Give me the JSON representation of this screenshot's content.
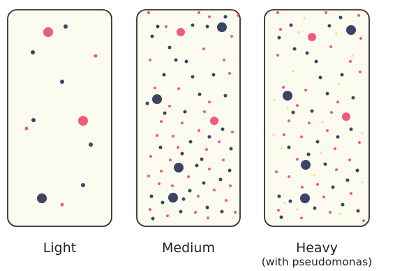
{
  "colors": {
    "background": "#ffffff",
    "panel_fill": "#fcfbf0",
    "panel_border": "#2e2e2e",
    "red_dot": "#f25b78",
    "blue_dot": "#3c4466",
    "yellow_dot": "#f5e08c"
  },
  "panels": [
    {
      "key": "light",
      "label": "Light",
      "sublabel": ""
    },
    {
      "key": "medium",
      "label": "Medium",
      "sublabel": ""
    },
    {
      "key": "heavy",
      "label": "Heavy",
      "sublabel": "(with pseudomonas)"
    }
  ]
}
